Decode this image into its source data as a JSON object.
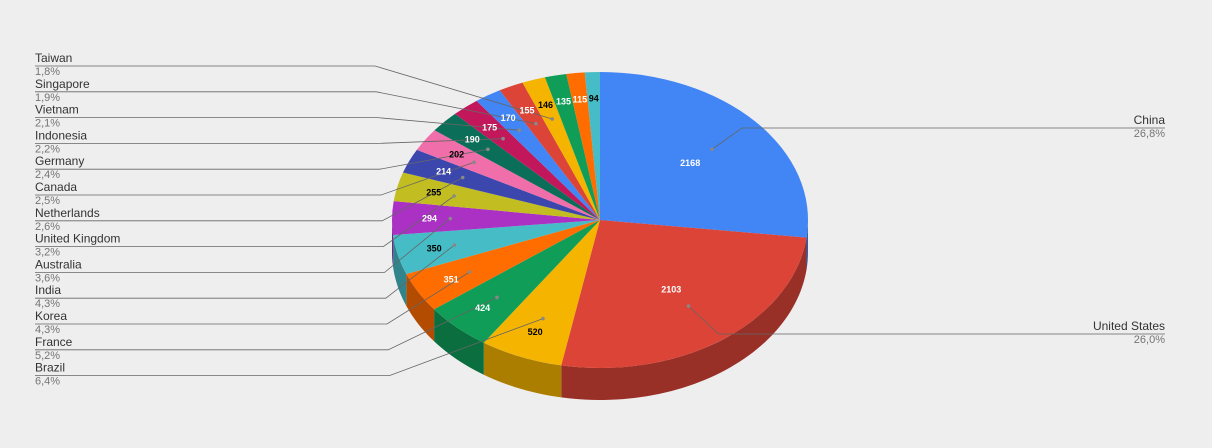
{
  "chart_data": {
    "type": "pie",
    "style": "3d",
    "title": "",
    "show_slice_values": true,
    "slices": [
      {
        "label": "China",
        "value": 2168,
        "percent": "26,8%",
        "color": "#4285f4"
      },
      {
        "label": "United States",
        "value": 2103,
        "percent": "26,0%",
        "color": "#db4437"
      },
      {
        "label": "Brazil",
        "value": 520,
        "percent": "6,4%",
        "color": "#f4b400"
      },
      {
        "label": "France",
        "value": 424,
        "percent": "5,2%",
        "color": "#0f9d58"
      },
      {
        "label": "Korea",
        "value": 351,
        "percent": "4,3%",
        "color": "#ff6d00"
      },
      {
        "label": "India",
        "value": 350,
        "percent": "4,3%",
        "color": "#46bdc6"
      },
      {
        "label": "Australia",
        "value": 294,
        "percent": "3,6%",
        "color": "#ab30c4"
      },
      {
        "label": "United Kingdom",
        "value": 255,
        "percent": "3,2%",
        "color": "#c2bd21"
      },
      {
        "label": "Netherlands",
        "value": 214,
        "percent": "2,6%",
        "color": "#3b47ad"
      },
      {
        "label": "Canada",
        "value": 202,
        "percent": "2,5%",
        "color": "#f06eaa"
      },
      {
        "label": "Germany",
        "value": 190,
        "percent": "2,4%",
        "color": "#0b6e58"
      },
      {
        "label": "Indonesia",
        "value": 175,
        "percent": "2,2%",
        "color": "#c2185b"
      },
      {
        "label": "Vietnam",
        "value": 170,
        "percent": "2,1%",
        "color": "#4285f4"
      },
      {
        "label": "Singapore",
        "value": 155,
        "percent": "1,9%",
        "color": "#db4437"
      },
      {
        "label": "Taiwan",
        "value": 146,
        "percent": "1,8%",
        "color": "#f4b400"
      },
      {
        "label": "",
        "value": 135,
        "percent": "",
        "color": "#0f9d58"
      },
      {
        "label": "",
        "value": 115,
        "percent": "",
        "color": "#ff6d00"
      },
      {
        "label": "",
        "value": 94,
        "percent": "",
        "color": "#46bdc6"
      }
    ]
  }
}
